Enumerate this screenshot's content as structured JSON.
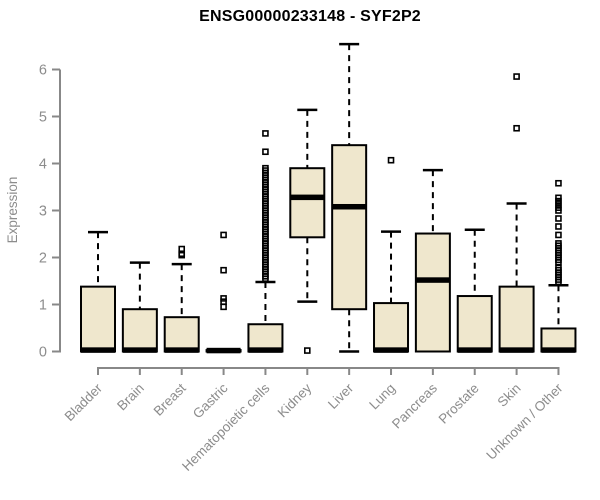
{
  "colors": {
    "background": "#ffffff",
    "box_fill": "#efe7cd",
    "box_border": "#000000",
    "median": "#000000",
    "whisker": "#000000",
    "outlier": "#000000",
    "axis_line": "#888888",
    "axis_text": "#8c8c8c",
    "title_text": "#000000"
  },
  "chart_data": {
    "type": "boxplot",
    "title": "ENSG00000233148 - SYF2P2",
    "xlabel": "",
    "ylabel": "Expression",
    "ylim": [
      0,
      6.6
    ],
    "yticks": [
      0,
      1,
      2,
      3,
      4,
      5,
      6
    ],
    "grid": false,
    "legend": "none",
    "categories": [
      "Bladder",
      "Brain",
      "Breast",
      "Gastric",
      "Hematopoietic cells",
      "Kidney",
      "Liver",
      "Lung",
      "Pancreas",
      "Prostate",
      "Skin",
      "Unknown / Other"
    ],
    "boxes": [
      {
        "category": "Bladder",
        "q1": 0,
        "median": 0.03,
        "q3": 1.38,
        "whisker_low": 0,
        "whisker_high": 2.54,
        "outliers": []
      },
      {
        "category": "Brain",
        "q1": 0,
        "median": 0.03,
        "q3": 0.9,
        "whisker_low": 0,
        "whisker_high": 1.89,
        "outliers": []
      },
      {
        "category": "Breast",
        "q1": 0,
        "median": 0.03,
        "q3": 0.73,
        "whisker_low": 0,
        "whisker_high": 1.86,
        "outliers": [
          2.05,
          2.08,
          2.18
        ]
      },
      {
        "category": "Gastric",
        "q1": 0,
        "median": 0.02,
        "q3": 0.03,
        "whisker_low": 0,
        "whisker_high": 0.03,
        "outliers": [
          0.95,
          1.06,
          1.13,
          1.73,
          2.48
        ]
      },
      {
        "category": "Hematopoietic cells",
        "q1": 0,
        "median": 0.03,
        "q3": 0.58,
        "whisker_low": 0,
        "whisker_high": 1.48,
        "outliers": [
          1.55,
          1.6,
          1.65,
          1.7,
          1.75,
          1.8,
          1.85,
          1.9,
          1.95,
          2.0,
          2.05,
          2.1,
          2.15,
          2.2,
          2.25,
          2.3,
          2.35,
          2.4,
          2.45,
          2.5,
          2.55,
          2.6,
          2.65,
          2.7,
          2.75,
          2.8,
          2.85,
          2.9,
          2.95,
          3.0,
          3.05,
          3.1,
          3.15,
          3.2,
          3.25,
          3.3,
          3.35,
          3.4,
          3.45,
          3.5,
          3.55,
          3.6,
          3.65,
          3.7,
          3.75,
          3.8,
          3.85,
          3.9,
          4.25,
          4.64
        ]
      },
      {
        "category": "Kidney",
        "q1": 2.43,
        "median": 3.28,
        "q3": 3.9,
        "whisker_low": 1.06,
        "whisker_high": 5.14,
        "outliers": [
          0.02
        ]
      },
      {
        "category": "Liver",
        "q1": 0.9,
        "median": 3.08,
        "q3": 4.39,
        "whisker_low": 0,
        "whisker_high": 6.54,
        "outliers": []
      },
      {
        "category": "Lung",
        "q1": 0,
        "median": 0.03,
        "q3": 1.03,
        "whisker_low": 0,
        "whisker_high": 2.55,
        "outliers": [
          4.07
        ]
      },
      {
        "category": "Pancreas",
        "q1": 0,
        "median": 1.52,
        "q3": 2.51,
        "whisker_low": 0,
        "whisker_high": 3.86,
        "outliers": []
      },
      {
        "category": "Prostate",
        "q1": 0,
        "median": 0.03,
        "q3": 1.18,
        "whisker_low": 0,
        "whisker_high": 2.59,
        "outliers": []
      },
      {
        "category": "Skin",
        "q1": 0,
        "median": 0.03,
        "q3": 1.38,
        "whisker_low": 0,
        "whisker_high": 3.15,
        "outliers": [
          4.75,
          5.85
        ]
      },
      {
        "category": "Unknown / Other",
        "q1": 0,
        "median": 0.03,
        "q3": 0.49,
        "whisker_low": 0,
        "whisker_high": 1.41,
        "outliers": [
          1.48,
          1.53,
          1.58,
          1.63,
          1.68,
          1.73,
          1.78,
          1.9,
          1.95,
          2.0,
          2.05,
          2.1,
          2.15,
          2.2,
          2.25,
          2.3,
          2.48,
          2.66,
          2.83,
          3.0,
          3.06,
          3.13,
          3.2,
          3.27,
          3.58
        ]
      }
    ]
  }
}
